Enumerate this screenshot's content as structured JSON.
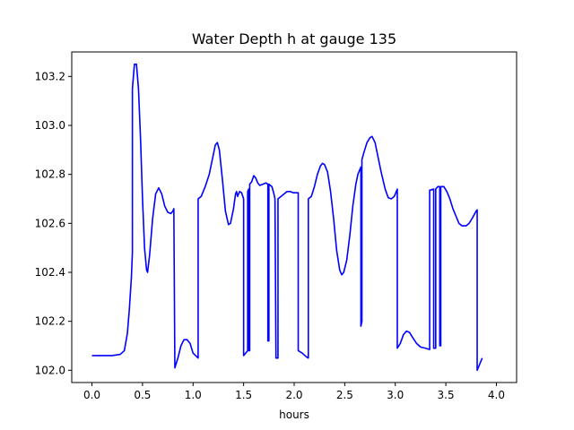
{
  "chart_data": {
    "type": "line",
    "title": "Water Depth h at gauge 135",
    "xlabel": "hours",
    "ylabel": "",
    "xlim": [
      -0.2,
      4.2
    ],
    "ylim": [
      101.95,
      103.3
    ],
    "xticks": [
      0.0,
      0.5,
      1.0,
      1.5,
      2.0,
      2.5,
      3.0,
      3.5,
      4.0
    ],
    "xtick_labels": [
      "0.0",
      "0.5",
      "1.0",
      "1.5",
      "2.0",
      "2.5",
      "3.0",
      "3.5",
      "4.0"
    ],
    "yticks": [
      102.0,
      102.2,
      102.4,
      102.6,
      102.8,
      103.0,
      103.2
    ],
    "ytick_labels": [
      "102.0",
      "102.2",
      "102.4",
      "102.6",
      "102.8",
      "103.0",
      "103.2"
    ],
    "grid": false,
    "series": [
      {
        "color": "#0000ff",
        "points": [
          [
            0.0,
            102.06
          ],
          [
            0.1,
            102.06
          ],
          [
            0.2,
            102.06
          ],
          [
            0.28,
            102.065
          ],
          [
            0.32,
            102.08
          ],
          [
            0.35,
            102.15
          ],
          [
            0.37,
            102.25
          ],
          [
            0.39,
            102.38
          ],
          [
            0.4,
            102.48
          ],
          [
            0.4,
            103.15
          ],
          [
            0.41,
            103.2
          ],
          [
            0.42,
            103.25
          ],
          [
            0.44,
            103.25
          ],
          [
            0.46,
            103.15
          ],
          [
            0.48,
            102.95
          ],
          [
            0.5,
            102.7
          ],
          [
            0.52,
            102.5
          ],
          [
            0.54,
            102.41
          ],
          [
            0.55,
            102.4
          ],
          [
            0.57,
            102.47
          ],
          [
            0.6,
            102.62
          ],
          [
            0.63,
            102.72
          ],
          [
            0.66,
            102.745
          ],
          [
            0.69,
            102.72
          ],
          [
            0.72,
            102.67
          ],
          [
            0.75,
            102.645
          ],
          [
            0.78,
            102.64
          ],
          [
            0.8,
            102.65
          ],
          [
            0.81,
            102.66
          ],
          [
            0.81,
            102.64
          ],
          [
            0.82,
            102.01
          ],
          [
            0.85,
            102.05
          ],
          [
            0.88,
            102.1
          ],
          [
            0.91,
            102.125
          ],
          [
            0.94,
            102.125
          ],
          [
            0.97,
            102.11
          ],
          [
            1.0,
            102.07
          ],
          [
            1.05,
            102.05
          ],
          [
            1.05,
            102.7
          ],
          [
            1.08,
            102.71
          ],
          [
            1.12,
            102.75
          ],
          [
            1.16,
            102.8
          ],
          [
            1.19,
            102.86
          ],
          [
            1.22,
            102.92
          ],
          [
            1.24,
            102.93
          ],
          [
            1.26,
            102.9
          ],
          [
            1.29,
            102.78
          ],
          [
            1.32,
            102.65
          ],
          [
            1.35,
            102.595
          ],
          [
            1.37,
            102.6
          ],
          [
            1.4,
            102.66
          ],
          [
            1.42,
            102.72
          ],
          [
            1.43,
            102.73
          ],
          [
            1.44,
            102.71
          ],
          [
            1.46,
            102.73
          ],
          [
            1.48,
            102.725
          ],
          [
            1.5,
            102.7
          ],
          [
            1.5,
            102.06
          ],
          [
            1.52,
            102.07
          ],
          [
            1.54,
            102.08
          ],
          [
            1.54,
            102.73
          ],
          [
            1.55,
            102.74
          ],
          [
            1.55,
            102.08
          ],
          [
            1.56,
            102.08
          ],
          [
            1.56,
            102.76
          ],
          [
            1.58,
            102.77
          ],
          [
            1.6,
            102.795
          ],
          [
            1.62,
            102.785
          ],
          [
            1.64,
            102.765
          ],
          [
            1.66,
            102.755
          ],
          [
            1.69,
            102.76
          ],
          [
            1.72,
            102.765
          ],
          [
            1.74,
            102.76
          ],
          [
            1.74,
            102.12
          ],
          [
            1.75,
            102.12
          ],
          [
            1.75,
            102.76
          ],
          [
            1.78,
            102.75
          ],
          [
            1.8,
            102.72
          ],
          [
            1.81,
            102.7
          ],
          [
            1.82,
            102.05
          ],
          [
            1.84,
            102.05
          ],
          [
            1.84,
            102.7
          ],
          [
            1.87,
            102.71
          ],
          [
            1.9,
            102.72
          ],
          [
            1.93,
            102.73
          ],
          [
            1.96,
            102.73
          ],
          [
            1.99,
            102.725
          ],
          [
            2.02,
            102.725
          ],
          [
            2.04,
            102.725
          ],
          [
            2.04,
            102.08
          ],
          [
            2.08,
            102.07
          ],
          [
            2.12,
            102.055
          ],
          [
            2.14,
            102.05
          ],
          [
            2.14,
            102.7
          ],
          [
            2.17,
            102.71
          ],
          [
            2.2,
            102.75
          ],
          [
            2.23,
            102.8
          ],
          [
            2.26,
            102.835
          ],
          [
            2.28,
            102.845
          ],
          [
            2.3,
            102.84
          ],
          [
            2.33,
            102.81
          ],
          [
            2.36,
            102.73
          ],
          [
            2.39,
            102.62
          ],
          [
            2.42,
            102.49
          ],
          [
            2.45,
            102.41
          ],
          [
            2.47,
            102.39
          ],
          [
            2.49,
            102.4
          ],
          [
            2.52,
            102.45
          ],
          [
            2.55,
            102.55
          ],
          [
            2.58,
            102.67
          ],
          [
            2.61,
            102.76
          ],
          [
            2.63,
            102.8
          ],
          [
            2.65,
            102.82
          ],
          [
            2.66,
            102.83
          ],
          [
            2.66,
            102.18
          ],
          [
            2.67,
            102.2
          ],
          [
            2.67,
            102.86
          ],
          [
            2.69,
            102.89
          ],
          [
            2.72,
            102.93
          ],
          [
            2.75,
            102.95
          ],
          [
            2.77,
            102.955
          ],
          [
            2.8,
            102.93
          ],
          [
            2.83,
            102.87
          ],
          [
            2.86,
            102.81
          ],
          [
            2.9,
            102.74
          ],
          [
            2.93,
            102.705
          ],
          [
            2.96,
            102.7
          ],
          [
            2.99,
            102.71
          ],
          [
            3.02,
            102.74
          ],
          [
            3.02,
            102.09
          ],
          [
            3.05,
            102.11
          ],
          [
            3.08,
            102.145
          ],
          [
            3.11,
            102.16
          ],
          [
            3.14,
            102.155
          ],
          [
            3.17,
            102.135
          ],
          [
            3.21,
            102.11
          ],
          [
            3.25,
            102.095
          ],
          [
            3.3,
            102.09
          ],
          [
            3.34,
            102.085
          ],
          [
            3.34,
            102.735
          ],
          [
            3.38,
            102.74
          ],
          [
            3.38,
            102.09
          ],
          [
            3.4,
            102.09
          ],
          [
            3.4,
            102.74
          ],
          [
            3.42,
            102.75
          ],
          [
            3.44,
            102.75
          ],
          [
            3.44,
            102.1
          ],
          [
            3.45,
            102.1
          ],
          [
            3.45,
            102.75
          ],
          [
            3.48,
            102.75
          ],
          [
            3.51,
            102.73
          ],
          [
            3.54,
            102.7
          ],
          [
            3.57,
            102.66
          ],
          [
            3.6,
            102.63
          ],
          [
            3.63,
            102.6
          ],
          [
            3.66,
            102.59
          ],
          [
            3.7,
            102.59
          ],
          [
            3.73,
            102.6
          ],
          [
            3.76,
            102.62
          ],
          [
            3.8,
            102.65
          ],
          [
            3.81,
            102.655
          ],
          [
            3.81,
            102.0
          ],
          [
            3.83,
            102.02
          ],
          [
            3.85,
            102.04
          ],
          [
            3.86,
            102.05
          ]
        ]
      }
    ]
  }
}
